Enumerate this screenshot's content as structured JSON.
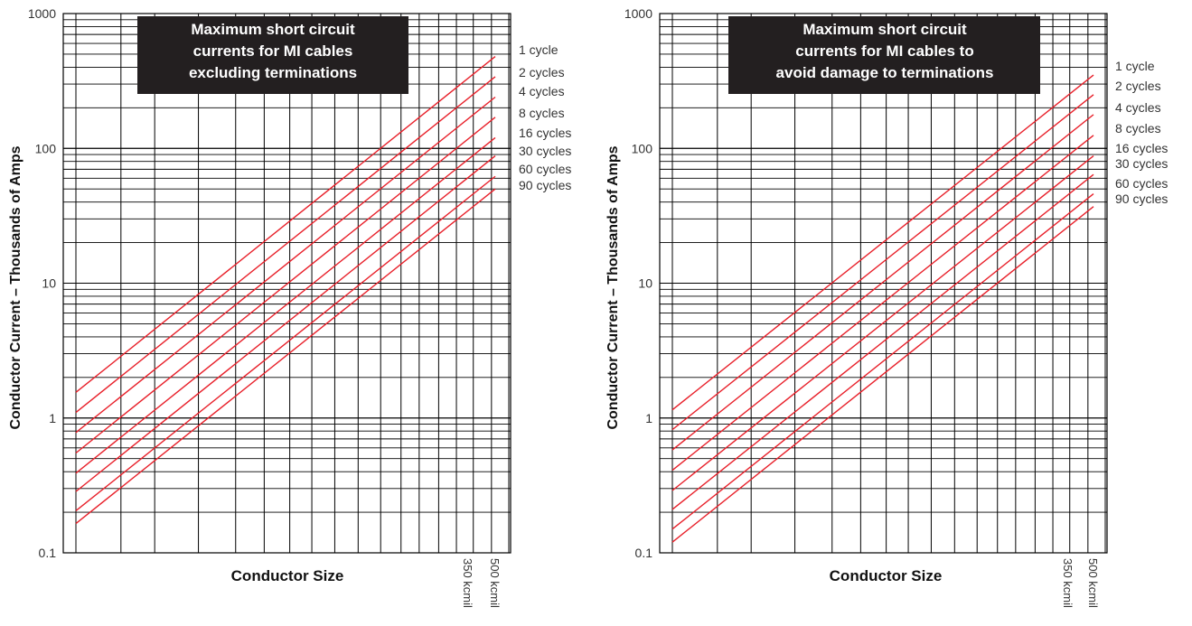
{
  "chart_data": [
    {
      "type": "line",
      "title_lines": [
        "Maximum short circuit",
        "currents for MI cables",
        "excluding terminations"
      ],
      "ylabel": "Conductor Current – Thousands of Amps",
      "xlabel": "Conductor Size",
      "yscale": "log",
      "ylim": [
        0.1,
        1000
      ],
      "yticks": [
        "1000",
        "100",
        "10",
        "1",
        "0.1"
      ],
      "xtick_labels": [
        "350 kcmil",
        "500 kcmil"
      ],
      "grid": true,
      "line_color": "#e8202a",
      "series": [
        {
          "name": "1 cycle",
          "start": 1.55,
          "end": 480
        },
        {
          "name": "2 cycles",
          "start": 1.1,
          "end": 340
        },
        {
          "name": "4 cycles",
          "start": 0.78,
          "end": 240
        },
        {
          "name": "8 cycles",
          "start": 0.55,
          "end": 170
        },
        {
          "name": "16 cycles",
          "start": 0.39,
          "end": 120
        },
        {
          "name": "30 cycles",
          "start": 0.285,
          "end": 88
        },
        {
          "name": "60 cycles",
          "start": 0.205,
          "end": 62
        },
        {
          "name": "90 cycles",
          "start": 0.165,
          "end": 50
        }
      ]
    },
    {
      "type": "line",
      "title_lines": [
        "Maximum short circuit",
        "currents for MI cables to",
        "avoid damage to terminations"
      ],
      "ylabel": "Conductor Current – Thousands of Amps",
      "xlabel": "Conductor Size",
      "yscale": "log",
      "ylim": [
        0.1,
        1000
      ],
      "yticks": [
        "1000",
        "100",
        "10",
        "1",
        "0.1"
      ],
      "xtick_labels": [
        "350 kcmil",
        "500 kcmil"
      ],
      "grid": true,
      "line_color": "#e8202a",
      "series": [
        {
          "name": "1 cycle",
          "start": 1.15,
          "end": 350
        },
        {
          "name": "2 cycles",
          "start": 0.82,
          "end": 250
        },
        {
          "name": "4 cycles",
          "start": 0.58,
          "end": 178
        },
        {
          "name": "8 cycles",
          "start": 0.41,
          "end": 125
        },
        {
          "name": "16 cycles",
          "start": 0.29,
          "end": 88
        },
        {
          "name": "30 cycles",
          "start": 0.21,
          "end": 64
        },
        {
          "name": "60 cycles",
          "start": 0.15,
          "end": 46
        },
        {
          "name": "90 cycles",
          "start": 0.12,
          "end": 37
        }
      ]
    }
  ]
}
